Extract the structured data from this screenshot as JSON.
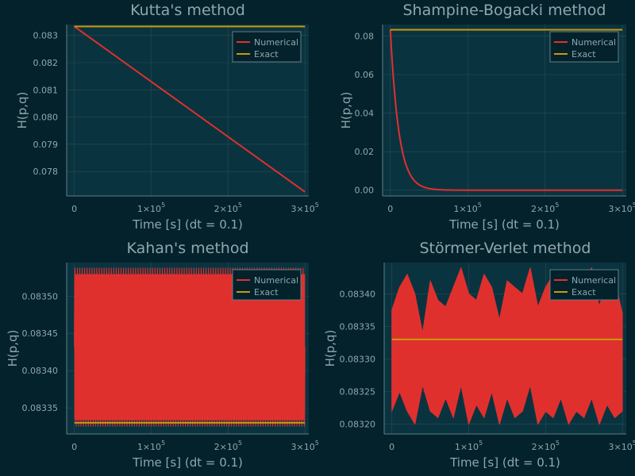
{
  "figure": {
    "background": "#04222c",
    "plot_background": "#0a3340",
    "grid_color": "#2b4b55",
    "axis_color": "#5e7f88",
    "text_color": "#8fa7ad",
    "numerical_color": "#e0302e",
    "exact_color": "#c9990d"
  },
  "legend": {
    "numerical": "Numerical",
    "exact": "Exact"
  },
  "chart_data": [
    {
      "type": "line",
      "title": "Kutta's method",
      "xlabel": "Time [s] (dt = 0.1)",
      "ylabel": "H(p,q)",
      "xlim": [
        -10000,
        305000
      ],
      "ylim": [
        0.0771,
        0.0834
      ],
      "xticks": [
        0,
        100000,
        200000,
        300000
      ],
      "xtick_labels": [
        {
          "b": "0",
          "e": ""
        },
        {
          "b": "1×10",
          "e": "5"
        },
        {
          "b": "2×10",
          "e": "5"
        },
        {
          "b": "3×10",
          "e": "5"
        }
      ],
      "yticks": [
        0.078,
        0.079,
        0.08,
        0.081,
        0.082,
        0.083
      ],
      "ytick_labels": [
        "0.078",
        "0.079",
        "0.080",
        "0.081",
        "0.082",
        "0.083"
      ],
      "legend_position": "top-right",
      "series": [
        {
          "name": "Numerical",
          "style": "linear",
          "x": [
            0,
            300000
          ],
          "y": [
            0.08333,
            0.07725
          ]
        },
        {
          "name": "Exact",
          "style": "linear",
          "x": [
            0,
            300000
          ],
          "y": [
            0.08333,
            0.08333
          ]
        }
      ]
    },
    {
      "type": "line",
      "title": "Shampine-Bogacki method",
      "xlabel": "Time [s] (dt = 0.1)",
      "ylabel": "H(p,q)",
      "xlim": [
        -10000,
        305000
      ],
      "ylim": [
        -0.003,
        0.086
      ],
      "xticks": [
        0,
        100000,
        200000,
        300000
      ],
      "xtick_labels": [
        {
          "b": "0",
          "e": ""
        },
        {
          "b": "1×10",
          "e": "5"
        },
        {
          "b": "2×10",
          "e": "5"
        },
        {
          "b": "3×10",
          "e": "5"
        }
      ],
      "yticks": [
        0.0,
        0.02,
        0.04,
        0.06,
        0.08
      ],
      "ytick_labels": [
        "0.00",
        "0.02",
        "0.04",
        "0.06",
        "0.08"
      ],
      "legend_position": "top-right",
      "series": [
        {
          "name": "Numerical",
          "style": "exp_decay",
          "x": [
            0,
            300000
          ],
          "y0": 0.08333,
          "decay_time": 11000
        },
        {
          "name": "Exact",
          "style": "linear",
          "x": [
            0,
            300000
          ],
          "y": [
            0.08333,
            0.08333
          ]
        }
      ]
    },
    {
      "type": "line",
      "title": "Kahan's method",
      "xlabel": "Time [s] (dt = 0.1)",
      "ylabel": "H(p,q)",
      "xlim": [
        -10000,
        305000
      ],
      "ylim": [
        0.083315,
        0.083545
      ],
      "xticks": [
        0,
        100000,
        200000,
        300000
      ],
      "xtick_labels": [
        {
          "b": "0",
          "e": ""
        },
        {
          "b": "1×10",
          "e": "5"
        },
        {
          "b": "2×10",
          "e": "5"
        },
        {
          "b": "3×10",
          "e": "5"
        }
      ],
      "yticks": [
        0.08335,
        0.0834,
        0.08345,
        0.0835
      ],
      "ytick_labels": [
        "0.08335",
        "0.08340",
        "0.08345",
        "0.08350"
      ],
      "legend_position": "top-right",
      "series": [
        {
          "name": "Numerical",
          "style": "dense_oscillation",
          "x": [
            0,
            300000
          ],
          "y_min": 0.083325,
          "y_max": 0.083538,
          "cycles": 95
        },
        {
          "name": "Exact",
          "style": "linear",
          "x": [
            0,
            300000
          ],
          "y": [
            0.08333,
            0.08333
          ]
        }
      ]
    },
    {
      "type": "line",
      "title": "Störmer-Verlet method",
      "xlabel": "Time [s] (dt = 0.1)",
      "ylabel": "H(p,q)",
      "xlim": [
        -10000,
        305000
      ],
      "ylim": [
        0.083185,
        0.083448
      ],
      "xticks": [
        0,
        100000,
        200000,
        300000
      ],
      "xtick_labels": [
        {
          "b": "0",
          "e": ""
        },
        {
          "b": "1×10",
          "e": "5"
        },
        {
          "b": "2×10",
          "e": "5"
        },
        {
          "b": "3×10",
          "e": "5"
        }
      ],
      "yticks": [
        0.0832,
        0.08325,
        0.0833,
        0.08335,
        0.0834
      ],
      "ytick_labels": [
        "0.08320",
        "0.08325",
        "0.08330",
        "0.08335",
        "0.08340"
      ],
      "legend_position": "top-right",
      "series": [
        {
          "name": "Numerical",
          "style": "band",
          "x": [
            0,
            10000,
            20000,
            30000,
            40000,
            50000,
            60000,
            70000,
            80000,
            90000,
            100000,
            110000,
            120000,
            130000,
            140000,
            150000,
            160000,
            170000,
            180000,
            190000,
            200000,
            210000,
            220000,
            230000,
            240000,
            250000,
            260000,
            270000,
            280000,
            290000,
            300000
          ],
          "upper": [
            0.083375,
            0.08341,
            0.08343,
            0.0834,
            0.08334,
            0.08342,
            0.08339,
            0.08338,
            0.08341,
            0.08344,
            0.0834,
            0.08339,
            0.08343,
            0.08341,
            0.08336,
            0.08342,
            0.08341,
            0.0834,
            0.08344,
            0.08338,
            0.08341,
            0.08343,
            0.08339,
            0.08342,
            0.08339,
            0.08341,
            0.08344,
            0.08338,
            0.08343,
            0.08342,
            0.08337
          ],
          "lower": [
            0.08322,
            0.08325,
            0.08322,
            0.0832,
            0.08326,
            0.08322,
            0.08321,
            0.08324,
            0.08321,
            0.08326,
            0.0832,
            0.08323,
            0.08321,
            0.08325,
            0.0832,
            0.08324,
            0.08321,
            0.08322,
            0.08326,
            0.0832,
            0.08322,
            0.08321,
            0.08324,
            0.0832,
            0.08322,
            0.08321,
            0.08324,
            0.0832,
            0.08323,
            0.08321,
            0.08322
          ]
        },
        {
          "name": "Exact",
          "style": "linear",
          "x": [
            0,
            300000
          ],
          "y": [
            0.08333,
            0.08333
          ]
        }
      ]
    }
  ]
}
